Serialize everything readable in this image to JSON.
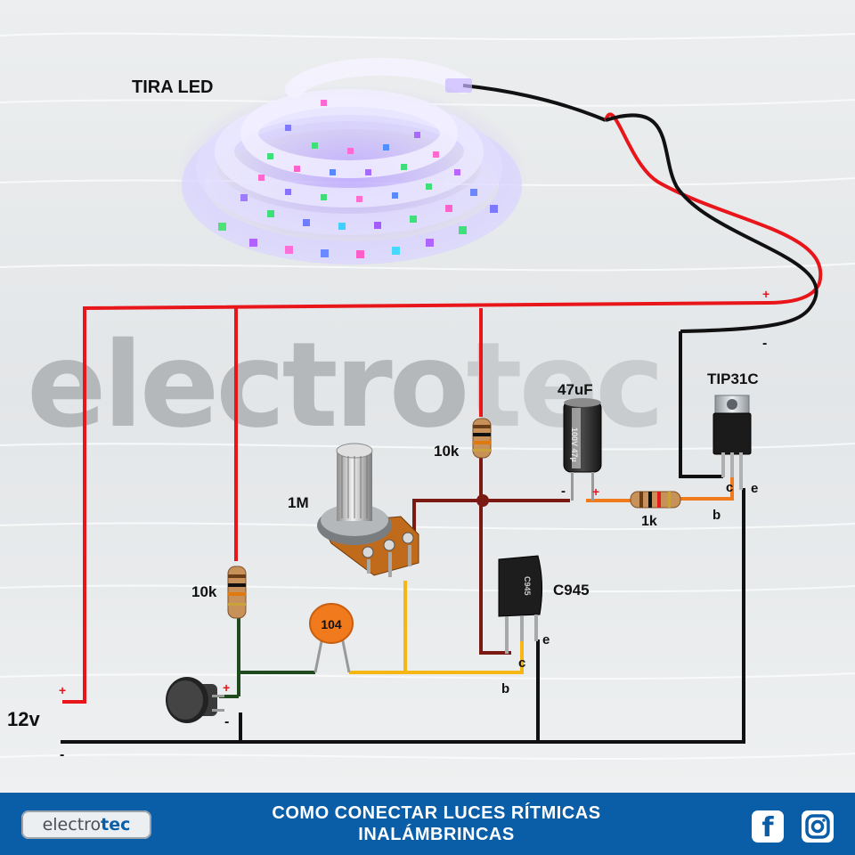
{
  "diagram": {
    "led_strip_label": "TIRA LED",
    "watermark": {
      "text_dark": "electro",
      "text_light": "tec"
    },
    "supply": {
      "label": "12v",
      "plus": "+",
      "minus": "-"
    },
    "led_terminals": {
      "plus": "+",
      "minus": "-"
    },
    "components": {
      "r_10k_top": "10k",
      "r_10k_left": "10k",
      "potentiometer": "1M",
      "ceramic_cap": "104",
      "electrolytic": {
        "value": "47uF",
        "plus": "+",
        "minus": "-",
        "body_text": "100V 47µ"
      },
      "r_1k": "1k",
      "transistor_small": {
        "label": "C945",
        "pins": {
          "e": "e",
          "c": "c",
          "b": "b"
        },
        "body_text": "C945"
      },
      "transistor_power": {
        "label": "TIP31C",
        "pins": {
          "c": "c",
          "e": "e",
          "b": "b"
        }
      },
      "microphone": {
        "plus": "+",
        "minus": "-"
      }
    },
    "colors": {
      "positive_wire": "#e8151b",
      "ground_wire": "#111111",
      "signal_wire": "#f6b715",
      "base_wire": "#f07a1c",
      "collector_wire": "#7a1a12",
      "mic_wire": "#1e4a1e"
    }
  },
  "footer": {
    "logo": {
      "part1": "electro",
      "part2": "tec"
    },
    "title_line1": "COMO CONECTAR LUCES RÍTMICAS",
    "title_line2": "INALÁMBRINCAS",
    "facebook_icon": "f",
    "instagram_icon": "instagram-icon"
  }
}
